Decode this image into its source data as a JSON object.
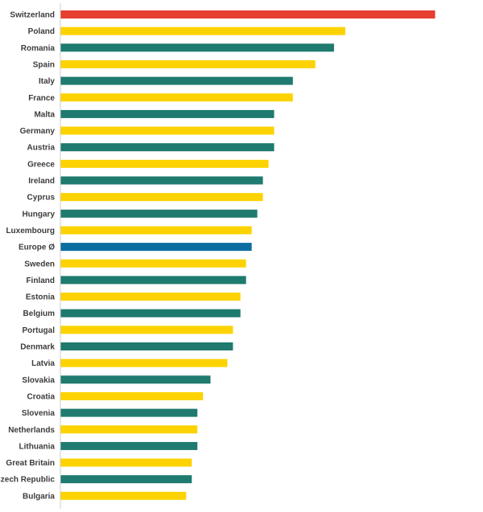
{
  "chart_data": {
    "type": "bar",
    "orientation": "horizontal",
    "title": "",
    "xlabel": "",
    "ylabel": "",
    "xlim": [
      0,
      100
    ],
    "grid": false,
    "legend": "none",
    "colors": {
      "highlight": "#E63E2F",
      "yellow": "#FCD300",
      "teal": "#1F7A6F",
      "average": "#0C6DA1",
      "axis": "#cccccc"
    },
    "categories": [
      "Switzerland",
      "Poland",
      "Romania",
      "Spain",
      "Italy",
      "France",
      "Malta",
      "Germany",
      "Austria",
      "Greece",
      "Ireland",
      "Cyprus",
      "Hungary",
      "Luxembourg",
      "Europe Ø",
      "Sweden",
      "Finland",
      "Estonia",
      "Belgium",
      "Portugal",
      "Denmark",
      "Latvia",
      "Slovakia",
      "Croatia",
      "Slovenia",
      "Netherlands",
      "Lithuania",
      "Great Britain",
      "Czech Republic",
      "Bulgaria"
    ],
    "values": [
      100,
      76,
      73,
      68,
      62,
      62,
      57,
      57,
      57,
      55.5,
      54,
      54,
      52.5,
      51,
      51,
      49.5,
      49.5,
      48,
      48,
      46,
      46,
      44.5,
      40,
      38,
      36.5,
      36.5,
      36.5,
      35,
      35,
      33.5
    ],
    "bar_colors": [
      "highlight",
      "yellow",
      "teal",
      "yellow",
      "teal",
      "yellow",
      "teal",
      "yellow",
      "teal",
      "yellow",
      "teal",
      "yellow",
      "teal",
      "yellow",
      "average",
      "yellow",
      "teal",
      "yellow",
      "teal",
      "yellow",
      "teal",
      "yellow",
      "teal",
      "yellow",
      "teal",
      "yellow",
      "teal",
      "yellow",
      "teal",
      "yellow"
    ]
  }
}
